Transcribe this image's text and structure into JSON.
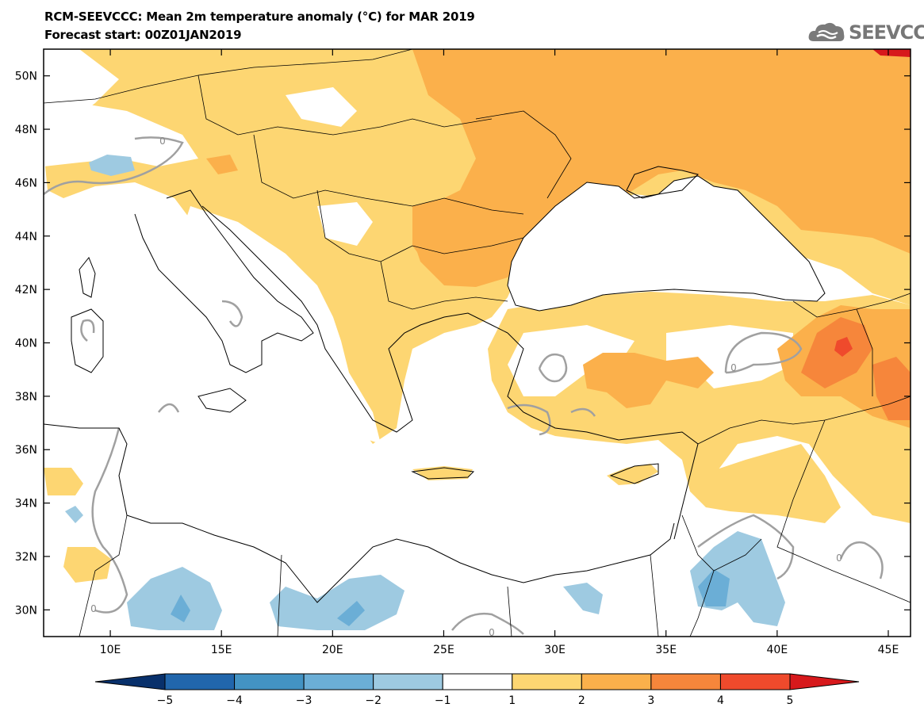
{
  "title_line1": "RCM-SEEVCCC: Mean 2m temperature anomaly (°C) for MAR 2019",
  "title_line2": "Forecast start: 00Z01JAN2019",
  "logo_text": "SEEVCCC",
  "logo_icon": "cloud-icon",
  "map": {
    "lon_range": [
      7,
      46
    ],
    "lat_range": [
      29,
      51
    ],
    "lon_ticks": [
      {
        "value": 10,
        "label": "10E"
      },
      {
        "value": 15,
        "label": "15E"
      },
      {
        "value": 20,
        "label": "20E"
      },
      {
        "value": 25,
        "label": "25E"
      },
      {
        "value": 30,
        "label": "30E"
      },
      {
        "value": 35,
        "label": "35E"
      },
      {
        "value": 40,
        "label": "40E"
      },
      {
        "value": 45,
        "label": "45E"
      }
    ],
    "lat_ticks": [
      {
        "value": 50,
        "label": "50N"
      },
      {
        "value": 48,
        "label": "48N"
      },
      {
        "value": 46,
        "label": "46N"
      },
      {
        "value": 44,
        "label": "44N"
      },
      {
        "value": 42,
        "label": "42N"
      },
      {
        "value": 40,
        "label": "40N"
      },
      {
        "value": 38,
        "label": "38N"
      },
      {
        "value": 36,
        "label": "36N"
      },
      {
        "value": 34,
        "label": "34N"
      },
      {
        "value": 32,
        "label": "32N"
      },
      {
        "value": 30,
        "label": "30N"
      }
    ],
    "zero_contour_label": "0"
  },
  "colorbar": {
    "levels": [
      "−5",
      "−4",
      "−3",
      "−2",
      "−1",
      "1",
      "2",
      "3",
      "4",
      "5"
    ],
    "colors": [
      "#08306b",
      "#2166ac",
      "#4393c3",
      "#6baed6",
      "#9ecae1",
      "#ffffff",
      "#fdd672",
      "#fbb04b",
      "#f6863b",
      "#ef4a2c",
      "#d7191c"
    ]
  },
  "colors": {
    "anom_1_2": "#fdd672",
    "anom_2_3": "#fbb04b",
    "anom_3_4": "#f6863b",
    "anom_4_5": "#ef4a2c",
    "anom_5_plus": "#d7191c",
    "anom_m1_m2": "#9ecae1",
    "anom_m2_m3": "#6baed6",
    "contour": "#a0a0a0",
    "border": "#000000"
  }
}
